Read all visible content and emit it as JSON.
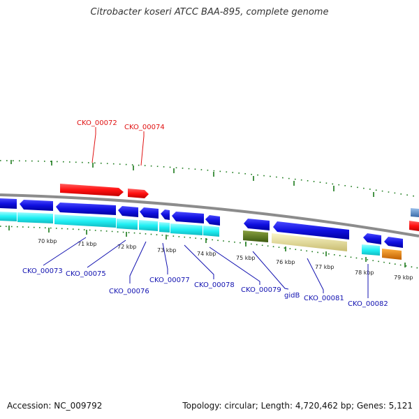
{
  "title": "Citrobacter koseri ATCC BAA-895, complete genome",
  "accession": "Accession: NC_009792",
  "summary": "Topology: circular; Length: 4,720,462 bp; Genes: 5,121",
  "colors": {
    "backbone": "#8c8c8c",
    "cds_forward": "#ff1a1a",
    "cds_reverse": "#1414e0",
    "gene_reverse": "#22eef0",
    "olive": "#5a7a1a",
    "khaki": "#efe6a0",
    "orange": "#f08000",
    "steelblue": "#5a8ac8",
    "tick": "#1a7a1a",
    "label_forward": "#e01010",
    "label_reverse": "#1010b0"
  },
  "kbp_labels": [
    "70 kbp",
    "71 kbp",
    "72 kbp",
    "73 kbp",
    "74 kbp",
    "75 kbp",
    "76 kbp",
    "77 kbp",
    "78 kbp",
    "79 kbp"
  ],
  "gene_labels_forward": [
    "CKO_00072",
    "CKO_00074"
  ],
  "gene_labels_reverse": [
    "CKO_00073",
    "CKO_00075",
    "CKO_00076",
    "CKO_00077",
    "CKO_00078",
    "CKO_00079",
    "gidB",
    "CKO_00081",
    "CKO_00082"
  ]
}
